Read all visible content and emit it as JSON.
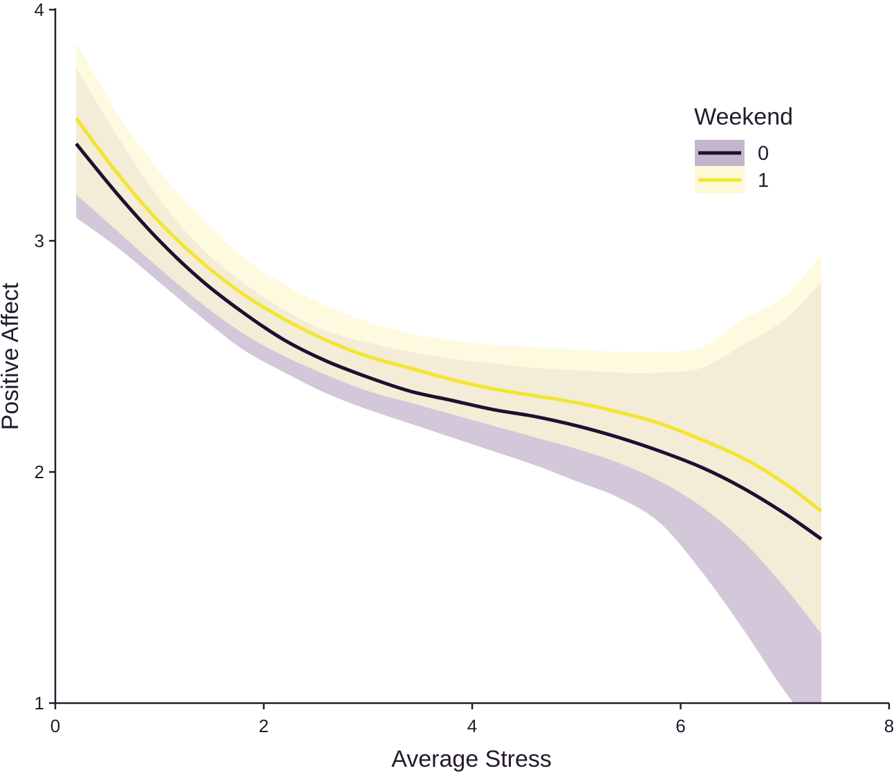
{
  "chart_data": {
    "type": "line",
    "xlabel": "Average Stress",
    "ylabel": "Positive Affect",
    "xlim": [
      0,
      8
    ],
    "ylim": [
      1,
      4
    ],
    "xticks": [
      0,
      2,
      4,
      6,
      8
    ],
    "yticks": [
      1,
      2,
      3,
      4
    ],
    "grid": false,
    "legend": {
      "title": "Weekend",
      "placement": "top-right"
    },
    "x": [
      0.2,
      0.6,
      1.0,
      1.4,
      1.8,
      2.2,
      2.6,
      3.0,
      3.4,
      3.8,
      4.2,
      4.6,
      5.0,
      5.4,
      5.8,
      6.2,
      6.6,
      7.0,
      7.35
    ],
    "series": [
      {
        "name": "0",
        "color": "#1f1030",
        "band_color": "#c3b6cc",
        "values": [
          3.42,
          3.2,
          3.0,
          2.83,
          2.69,
          2.57,
          2.48,
          2.41,
          2.35,
          2.31,
          2.27,
          2.24,
          2.2,
          2.15,
          2.09,
          2.02,
          1.93,
          1.82,
          1.71
        ],
        "lower": [
          3.1,
          2.97,
          2.82,
          2.67,
          2.53,
          2.43,
          2.34,
          2.27,
          2.21,
          2.15,
          2.09,
          2.03,
          1.96,
          1.89,
          1.78,
          1.57,
          1.32,
          1.05,
          0.85
        ],
        "upper": [
          3.75,
          3.45,
          3.18,
          2.97,
          2.82,
          2.7,
          2.61,
          2.56,
          2.52,
          2.49,
          2.47,
          2.45,
          2.44,
          2.43,
          2.43,
          2.45,
          2.55,
          2.66,
          2.82
        ]
      },
      {
        "name": "1",
        "color": "#f3e52d",
        "band_color": "#fdf8d6",
        "values": [
          3.53,
          3.29,
          3.08,
          2.91,
          2.77,
          2.66,
          2.57,
          2.5,
          2.45,
          2.4,
          2.36,
          2.33,
          2.3,
          2.26,
          2.21,
          2.14,
          2.06,
          1.95,
          1.83
        ],
        "lower": [
          3.2,
          3.04,
          2.88,
          2.73,
          2.6,
          2.5,
          2.42,
          2.35,
          2.3,
          2.25,
          2.2,
          2.15,
          2.1,
          2.04,
          1.96,
          1.85,
          1.7,
          1.5,
          1.3
        ],
        "upper": [
          3.86,
          3.55,
          3.3,
          3.1,
          2.93,
          2.81,
          2.72,
          2.65,
          2.6,
          2.57,
          2.55,
          2.54,
          2.53,
          2.52,
          2.52,
          2.54,
          2.66,
          2.76,
          2.94
        ]
      }
    ]
  }
}
